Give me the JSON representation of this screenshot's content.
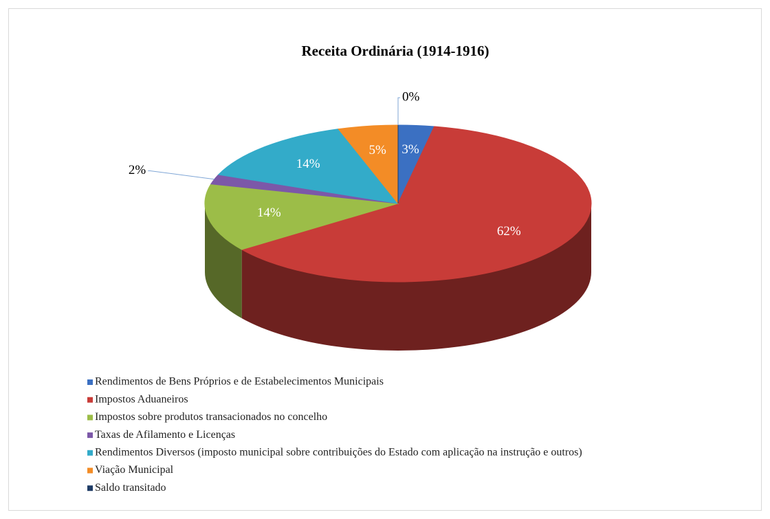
{
  "chart_data": {
    "type": "pie",
    "title": "Receita Ordinária (1914-1916)",
    "categories": [
      "Rendimentos de Bens Próprios e de Estabelecimentos Municipais",
      "Impostos Aduaneiros",
      "Impostos sobre produtos transacionados no concelho",
      "Taxas de Afilamento e Licenças",
      "Rendimentos Diversos (imposto municipal sobre contribuições do Estado com aplicação na instrução e outros)",
      "Viação Municipal",
      "Saldo transitado"
    ],
    "values": [
      3,
      62,
      14,
      2,
      14,
      5,
      0
    ],
    "value_labels": [
      "3%",
      "62%",
      "14%",
      "2%",
      "14%",
      "5%",
      "0%"
    ],
    "colors": [
      "#3b70c2",
      "#c83c38",
      "#9cbd48",
      "#7c58a8",
      "#33abc9",
      "#f38c26",
      "#1f3c66"
    ],
    "legend": "bottom"
  }
}
